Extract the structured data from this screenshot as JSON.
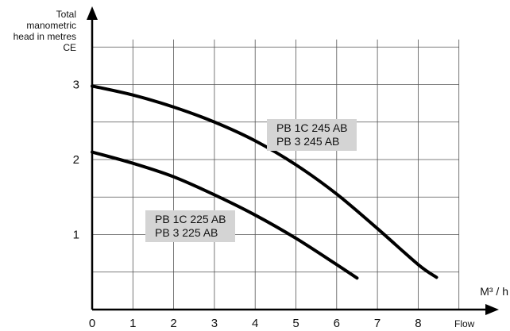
{
  "chart_data": {
    "type": "line",
    "ylabel_lines": [
      "Total",
      "manometric",
      "head in metres",
      "CE"
    ],
    "xlabel_unit": "M³ / h",
    "xlabel": "Flow",
    "xlim": [
      0,
      9
    ],
    "ylim": [
      0,
      4
    ],
    "x_ticks": [
      "0",
      "1",
      "2",
      "3",
      "4",
      "5",
      "6",
      "7",
      "8"
    ],
    "y_ticks": [
      "1",
      "2",
      "3"
    ],
    "grid": true,
    "series": [
      {
        "label_lines": [
          "PB 1C 245 AB",
          "PB 3 245 AB"
        ],
        "x": [
          0,
          1,
          2,
          3,
          4,
          5,
          6,
          7,
          8,
          8.45
        ],
        "y": [
          2.98,
          2.86,
          2.7,
          2.5,
          2.25,
          1.93,
          1.54,
          1.08,
          0.6,
          0.43
        ]
      },
      {
        "label_lines": [
          "PB 1C 225 AB",
          "PB 3 225 AB"
        ],
        "x": [
          0,
          1,
          2,
          3,
          4,
          5,
          6,
          6.5
        ],
        "y": [
          2.1,
          1.95,
          1.77,
          1.53,
          1.26,
          0.95,
          0.6,
          0.42
        ]
      }
    ]
  }
}
